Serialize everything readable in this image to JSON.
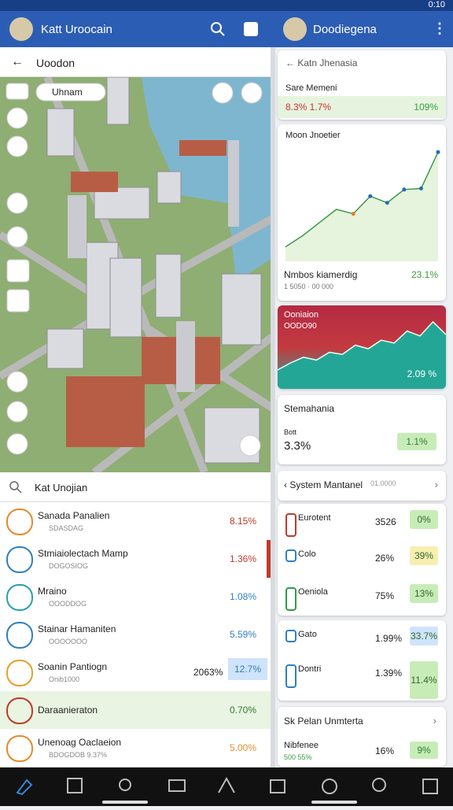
{
  "status_bar": {
    "time": "0:10"
  },
  "left_panel": {
    "app_bar": {
      "title": "Katt Uroocain"
    },
    "toolbar": {
      "title": "Uoodon"
    },
    "map": {
      "search_chip": "Uhnam"
    },
    "search": {
      "placeholder": "Kat Unojian"
    },
    "rows": [
      {
        "title": "Sanada Panalien",
        "subtitle": "SDASDAG",
        "value": "8.15%"
      },
      {
        "title": "Stmiaiolectach Mamp",
        "subtitle": "DOGOSIOG",
        "value": "1.36%"
      },
      {
        "title": "Mraino",
        "subtitle": "OOODDOG",
        "value": "1.08%"
      },
      {
        "title": "Stainar Hamaniten",
        "subtitle": "OOOOOOO",
        "value": "5.59%"
      },
      {
        "title": "Soanin Pantiogn",
        "subtitle": "Onib1000",
        "extra": "2063%",
        "value": "12.7%"
      },
      {
        "title": "Daraanieraton",
        "value": "0.70%"
      },
      {
        "title": "Unenoag Oaclaeion",
        "subtitle": "BDOGDOB 9.37%",
        "value": "5.00%"
      }
    ]
  },
  "right_panel": {
    "app_bar": {
      "title": "Doodiegena"
    },
    "card_header": {
      "title": "Katn Jhenasia"
    },
    "summary": {
      "title": "Sare Memeni",
      "left": "8.3% 1.7%",
      "right": "109%"
    },
    "trend_chart": {
      "title": "Moon Jnoetier",
      "values": [
        6,
        16,
        28,
        40,
        36,
        52,
        46,
        58,
        59,
        92
      ],
      "footer_title": "Nmbos kiamerdig",
      "footer_subtitle": "1 5050 · 00 000",
      "footer_value": "23.1%"
    },
    "area_card": {
      "title": "Ooniaion",
      "subtitle": "OODO90",
      "values": [
        20,
        30,
        38,
        34,
        45,
        42,
        55,
        50,
        62,
        58,
        75,
        68,
        88,
        70
      ],
      "value": "2.09 %"
    },
    "stat_card": {
      "title": "Stemahania",
      "label": "Bott",
      "value": "3.3%",
      "badge": "1.1%"
    },
    "system_list": {
      "title": "System Mantanel",
      "tag": "01.0000",
      "rows": [
        {
          "name": "Eurotent",
          "value": "3526",
          "badge": "0%"
        },
        {
          "name": "Colo",
          "value": "26%",
          "badge": "39%"
        },
        {
          "name": "Oeniola",
          "value": "75%",
          "badge": "13%"
        },
        {
          "name": "Gato",
          "value": "1.99%",
          "badge": "33.7%"
        },
        {
          "name": "Dontri",
          "value": "1.39%",
          "badge": "11.4%"
        }
      ]
    },
    "footer_card": {
      "title": "Sk Pelan Unmterta",
      "name": "Nibfenee",
      "sub": "500 55%",
      "value": "16%",
      "badge": "9%"
    }
  }
}
